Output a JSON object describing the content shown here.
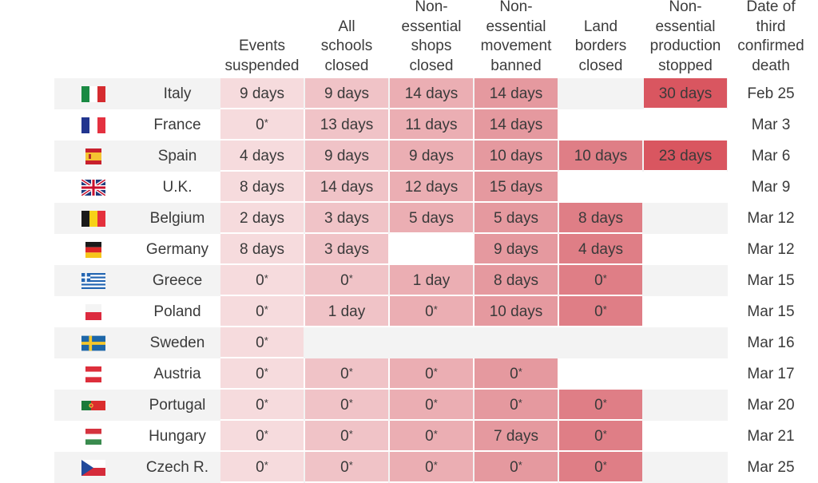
{
  "columns": [
    {
      "label": "Events\nsuspended",
      "color": "#f6dbdd"
    },
    {
      "label": "All\nschools\nclosed",
      "color": "#f0c3c7"
    },
    {
      "label": "Non-\nessential\nshops\nclosed",
      "color": "#ebaeb3"
    },
    {
      "label": "Non-\nessential\nmovement\nbanned",
      "color": "#e5999f"
    },
    {
      "label": "Land\nborders\nclosed",
      "color": "#df7e86"
    },
    {
      "label": "Non-\nessential\nproduction\nstopped",
      "color": "#d95660"
    }
  ],
  "date_header": "Date of\nthird\nconfirmed\ndeath",
  "rows": [
    {
      "flag": "italy-flag",
      "country": "Italy",
      "cells": [
        "9 days",
        "9 days",
        "14 days",
        "14 days",
        "",
        "30 days"
      ],
      "date": "Feb 25"
    },
    {
      "flag": "france-flag",
      "country": "France",
      "cells": [
        "0*",
        "13 days",
        "11 days",
        "14 days",
        "",
        ""
      ],
      "date": "Mar 3"
    },
    {
      "flag": "spain-flag",
      "country": "Spain",
      "cells": [
        "4 days",
        "9 days",
        "9 days",
        "10 days",
        "10 days",
        "23 days"
      ],
      "date": "Mar 6"
    },
    {
      "flag": "uk-flag",
      "country": "U.K.",
      "cells": [
        "8 days",
        "14 days",
        "12 days",
        "15 days",
        "",
        ""
      ],
      "date": "Mar 9"
    },
    {
      "flag": "belgium-flag",
      "country": "Belgium",
      "cells": [
        "2 days",
        "3 days",
        "5 days",
        "5 days",
        "8 days",
        ""
      ],
      "date": "Mar 12"
    },
    {
      "flag": "germany-flag",
      "country": "Germany",
      "cells": [
        "8 days",
        "3 days",
        "",
        "9 days",
        "4 days",
        ""
      ],
      "date": "Mar 12"
    },
    {
      "flag": "greece-flag",
      "country": "Greece",
      "cells": [
        "0*",
        "0*",
        "1 day",
        "8 days",
        "0*",
        ""
      ],
      "date": "Mar 15"
    },
    {
      "flag": "poland-flag",
      "country": "Poland",
      "cells": [
        "0*",
        "1 day",
        "0*",
        "10 days",
        "0*",
        ""
      ],
      "date": "Mar 15"
    },
    {
      "flag": "sweden-flag",
      "country": "Sweden",
      "cells": [
        "0*",
        "",
        "",
        "",
        "",
        ""
      ],
      "date": "Mar 16"
    },
    {
      "flag": "austria-flag",
      "country": "Austria",
      "cells": [
        "0*",
        "0*",
        "0*",
        "0*",
        "",
        ""
      ],
      "date": "Mar 17"
    },
    {
      "flag": "portugal-flag",
      "country": "Portugal",
      "cells": [
        "0*",
        "0*",
        "0*",
        "0*",
        "0*",
        ""
      ],
      "date": "Mar 20"
    },
    {
      "flag": "hungary-flag",
      "country": "Hungary",
      "cells": [
        "0*",
        "0*",
        "0*",
        "7 days",
        "0*",
        ""
      ],
      "date": "Mar 21"
    },
    {
      "flag": "czech-flag",
      "country": "Czech R.",
      "cells": [
        "0*",
        "0*",
        "0*",
        "0*",
        "0*",
        ""
      ],
      "date": "Mar 25"
    }
  ]
}
